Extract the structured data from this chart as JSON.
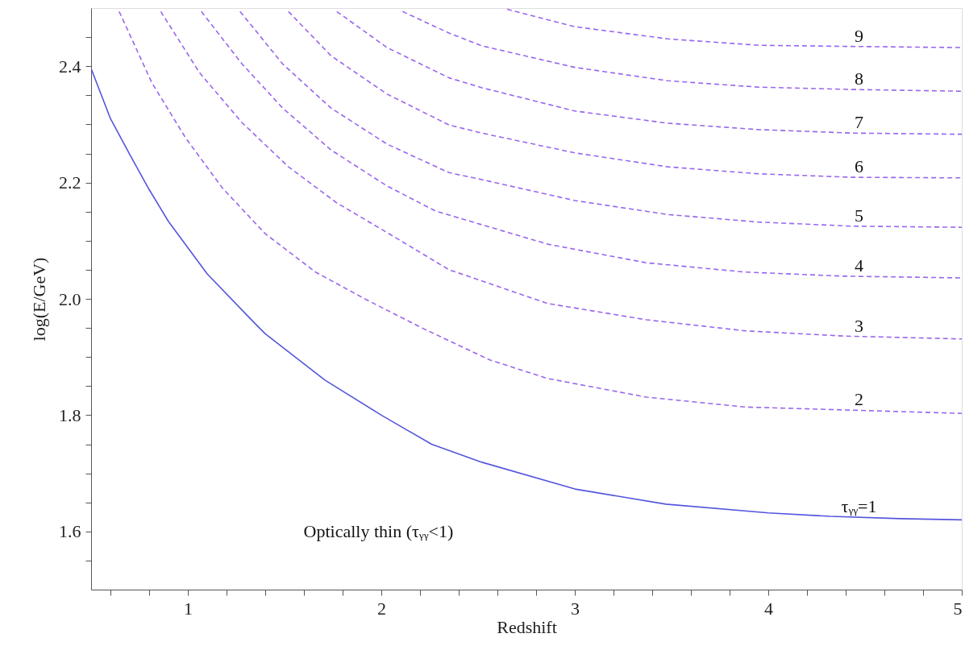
{
  "chart_data": {
    "type": "line",
    "xlabel": "Redshift",
    "ylabel": "log(E/GeV)",
    "xlim": [
      0.5,
      5
    ],
    "ylim": [
      1.5,
      2.5
    ],
    "xticks": [
      {
        "value": 0.6,
        "label": null
      },
      {
        "value": 0.8,
        "label": null
      },
      1,
      {
        "value": 1.2,
        "label": null
      },
      {
        "value": 1.4,
        "label": null
      },
      {
        "value": 1.6,
        "label": null
      },
      {
        "value": 1.8,
        "label": null
      },
      2,
      {
        "value": 2.2,
        "label": null
      },
      {
        "value": 2.4,
        "label": null
      },
      {
        "value": 2.6,
        "label": null
      },
      {
        "value": 2.8,
        "label": null
      },
      3,
      {
        "value": 3.2,
        "label": null
      },
      {
        "value": 3.4,
        "label": null
      },
      {
        "value": 3.6,
        "label": null
      },
      {
        "value": 3.8,
        "label": null
      },
      4,
      {
        "value": 4.2,
        "label": null
      },
      {
        "value": 4.4,
        "label": null
      },
      {
        "value": 4.6,
        "label": null
      },
      {
        "value": 4.8,
        "label": null
      },
      5
    ],
    "yticks": [
      {
        "value": 1.55,
        "label": null
      },
      1.6,
      {
        "value": 1.65,
        "label": null
      },
      {
        "value": 1.7,
        "label": null
      },
      {
        "value": 1.75,
        "label": null
      },
      1.8,
      {
        "value": 1.85,
        "label": null
      },
      {
        "value": 1.9,
        "label": null
      },
      {
        "value": 1.95,
        "label": null
      },
      {
        "value": 2,
        "label": "2.0"
      },
      {
        "value": 2.05,
        "label": null
      },
      {
        "value": 2.1,
        "label": null
      },
      {
        "value": 2.15,
        "label": null
      },
      2.2,
      {
        "value": 2.25,
        "label": null
      },
      {
        "value": 2.3,
        "label": null
      },
      {
        "value": 2.35,
        "label": null
      },
      2.4,
      {
        "value": 2.45,
        "label": null
      }
    ],
    "grid": false,
    "annotations": [
      "Optically thin (τᵧᵧ<1)"
    ],
    "series": [
      {
        "name": "τᵧᵧ=1",
        "color": "#5555dd",
        "line_style": "solid",
        "x": [
          0.5,
          0.6,
          0.7,
          0.8,
          0.9,
          1.1,
          1.34,
          1.4,
          1.71,
          2.0,
          2.26,
          2.52,
          3.0,
          3.47,
          4.0,
          4.32,
          4.68,
          5.0
        ],
        "values": [
          2.396,
          2.31,
          2.248,
          2.188,
          2.133,
          2.043,
          1.96,
          1.94,
          1.86,
          1.8,
          1.75,
          1.719,
          1.673,
          1.647,
          1.632,
          1.626,
          1.622,
          1.62
        ]
      },
      {
        "name": "2",
        "color": "#9966ee",
        "line_style": "dashed",
        "x": [
          0.645,
          0.815,
          0.99,
          1.18,
          1.4,
          1.66,
          1.92,
          2.21,
          2.56,
          2.86,
          3.37,
          3.88,
          4.39,
          5.0
        ],
        "values": [
          2.494,
          2.371,
          2.276,
          2.19,
          2.112,
          2.046,
          1.999,
          1.95,
          1.895,
          1.863,
          1.831,
          1.814,
          1.809,
          1.803
        ]
      },
      {
        "name": "3",
        "color": "#9966ee",
        "line_style": "dashed",
        "x": [
          0.86,
          1.06,
          1.28,
          1.52,
          1.77,
          2.06,
          2.35,
          2.86,
          3.37,
          3.88,
          4.39,
          5.0
        ],
        "values": [
          2.494,
          2.389,
          2.303,
          2.227,
          2.165,
          2.108,
          2.05,
          1.992,
          1.964,
          1.945,
          1.936,
          1.931
        ]
      },
      {
        "name": "4",
        "color": "#9966ee",
        "line_style": "dashed",
        "x": [
          1.07,
          1.28,
          1.49,
          1.74,
          2.03,
          2.28,
          2.86,
          3.37,
          3.88,
          4.39,
          5.0
        ],
        "values": [
          2.494,
          2.404,
          2.328,
          2.256,
          2.194,
          2.151,
          2.094,
          2.062,
          2.046,
          2.039,
          2.036
        ]
      },
      {
        "name": "5",
        "color": "#9966ee",
        "line_style": "dashed",
        "x": [
          1.27,
          1.49,
          1.74,
          2.03,
          2.35,
          2.52,
          3.0,
          3.48,
          3.95,
          4.43,
          5.0
        ],
        "values": [
          2.494,
          2.404,
          2.328,
          2.266,
          2.217,
          2.205,
          2.169,
          2.145,
          2.132,
          2.125,
          2.123
        ]
      },
      {
        "name": "6",
        "color": "#9966ee",
        "line_style": "dashed",
        "x": [
          1.52,
          1.74,
          2.03,
          2.35,
          2.52,
          3.0,
          3.48,
          3.95,
          4.43,
          5.0
        ],
        "values": [
          2.494,
          2.418,
          2.352,
          2.299,
          2.285,
          2.251,
          2.227,
          2.215,
          2.209,
          2.208
        ]
      },
      {
        "name": "7",
        "color": "#9966ee",
        "line_style": "dashed",
        "x": [
          1.77,
          2.03,
          2.35,
          2.52,
          3.0,
          3.48,
          3.95,
          4.43,
          5.0
        ],
        "values": [
          2.494,
          2.432,
          2.38,
          2.363,
          2.323,
          2.302,
          2.291,
          2.285,
          2.283
        ]
      },
      {
        "name": "8",
        "color": "#9966ee",
        "line_style": "dashed",
        "x": [
          2.11,
          2.35,
          2.52,
          3.0,
          3.48,
          3.95,
          4.43,
          5.0
        ],
        "values": [
          2.494,
          2.457,
          2.435,
          2.398,
          2.375,
          2.364,
          2.36,
          2.357
        ]
      },
      {
        "name": "9",
        "color": "#9966ee",
        "line_style": "dashed",
        "x": [
          2.65,
          3.0,
          3.48,
          3.95,
          4.43,
          5.0
        ],
        "values": [
          2.498,
          2.468,
          2.447,
          2.436,
          2.434,
          2.432
        ]
      }
    ]
  }
}
